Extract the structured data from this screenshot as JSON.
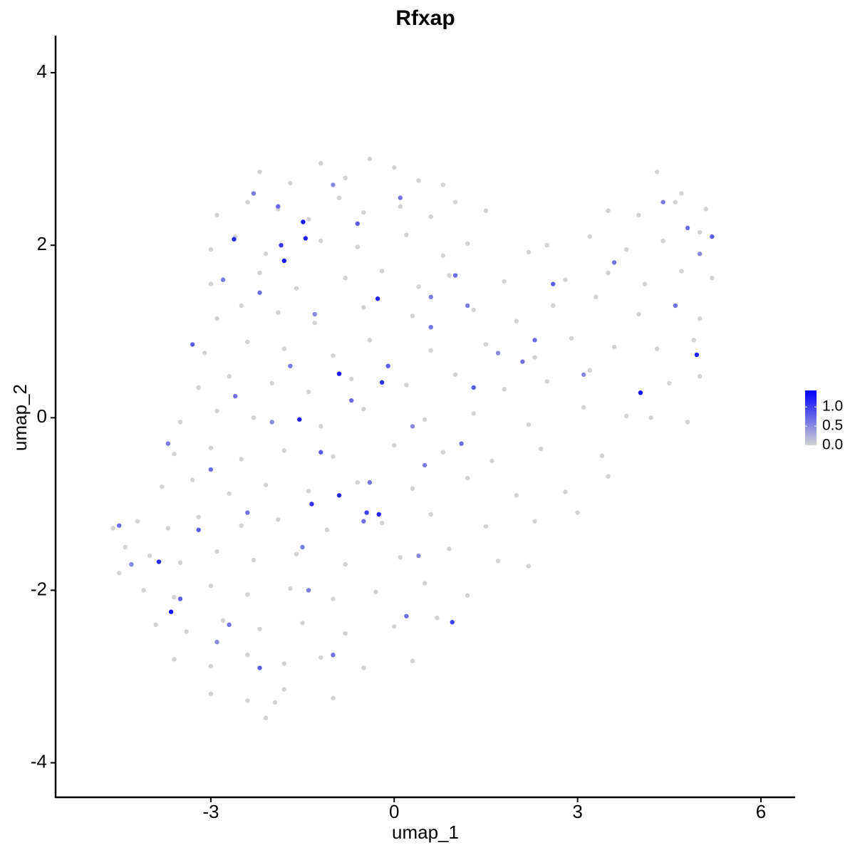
{
  "chart_data": {
    "type": "scatter",
    "title": "Rfxap",
    "x_label": "umap_1",
    "y_label": "umap_2",
    "xlim": [
      -5.54,
      6.56
    ],
    "ylim": [
      -4.4,
      4.43
    ],
    "xticks": [
      -3,
      0,
      3,
      6
    ],
    "yticks": [
      -4,
      -2,
      0,
      2,
      4
    ],
    "color_low": "#d3d3d3",
    "color_high": "#0000ff",
    "clim": [
      0,
      1.43
    ],
    "cticks": [
      {
        "value": 0,
        "label": "0.0"
      },
      {
        "value": 0.5,
        "label": "0.5"
      },
      {
        "value": 1,
        "label": "1.0"
      }
    ],
    "x": [
      -2.2,
      -1.7,
      -1.2,
      -0.8,
      -0.4,
      0.0,
      0.4,
      0.8,
      -2.9,
      -2.4,
      -1.9,
      -1.4,
      -0.9,
      -0.5,
      0.1,
      0.6,
      1.0,
      1.5,
      -3.0,
      -2.6,
      -2.1,
      -1.2,
      -0.6,
      0.2,
      0.8,
      1.2,
      -3.0,
      -2.2,
      -1.6,
      -0.8,
      -0.2,
      0.4,
      0.9,
      1.8,
      2.2,
      -2.9,
      -2.5,
      -1.9,
      -1.3,
      -0.5,
      0.3,
      1.3,
      2.0,
      2.6,
      3.3,
      -3.1,
      -2.4,
      -1.8,
      -1.0,
      -0.4,
      0.6,
      1.5,
      2.3,
      2.9,
      3.6,
      -3.2,
      -2.7,
      -2.0,
      -1.4,
      -0.7,
      0.2,
      1.0,
      1.8,
      2.5,
      3.2,
      -3.5,
      -2.9,
      -2.3,
      -1.2,
      -0.5,
      0.5,
      1.3,
      2.2,
      3.1,
      3.8,
      -3.6,
      -3.0,
      -2.5,
      -1.8,
      -1.0,
      0.0,
      0.8,
      1.6,
      2.4,
      3.4,
      -3.8,
      -3.3,
      -2.7,
      -2.1,
      -1.4,
      -0.6,
      0.3,
      1.2,
      2.0,
      2.8,
      3.5,
      -4.2,
      -3.7,
      -3.2,
      -2.5,
      -1.9,
      -1.1,
      -0.2,
      0.6,
      1.5,
      2.3,
      3.0,
      -4.0,
      -3.5,
      -2.9,
      -2.3,
      -1.6,
      -0.8,
      0.1,
      0.9,
      1.7,
      2.2,
      -4.1,
      -3.6,
      -3.0,
      -2.4,
      -1.7,
      -1.0,
      -0.3,
      0.5,
      1.2,
      -3.9,
      -3.4,
      -2.8,
      -2.2,
      -1.5,
      -0.8,
      0.0,
      0.7,
      -3.6,
      -3.0,
      -2.4,
      -1.8,
      -1.2,
      -0.5,
      0.3,
      -3.0,
      -2.4,
      -1.8,
      -1.0,
      -2.1,
      -1.95,
      4.3,
      4.7,
      3.5,
      4.0,
      4.6,
      5.1,
      2.5,
      3.2,
      3.8,
      4.4,
      5.0,
      2.8,
      3.5,
      4.1,
      4.7,
      5.2,
      4.0,
      4.6,
      5.0,
      4.3,
      4.9,
      4.5,
      5.0,
      4.2,
      4.8,
      -4.6,
      -4.4,
      -4.5,
      -2.3,
      -1.9,
      -1.0,
      -0.6,
      0.1,
      0.6,
      1.0,
      1.7,
      2.6,
      3.6,
      4.4,
      4.8,
      5.0,
      5.2,
      4.6,
      -2.8,
      -2.2,
      -1.3,
      -0.1,
      0.6,
      1.2,
      2.3,
      3.1,
      -3.3,
      -2.6,
      -1.7,
      -0.7,
      0.3,
      1.3,
      2.1,
      -3.7,
      -3.0,
      -2.0,
      -1.2,
      -0.4,
      0.5,
      1.1,
      -4.3,
      -3.2,
      -2.4,
      -1.5,
      -0.5,
      0.4,
      -3.5,
      -2.7,
      -1.4,
      0.2,
      -2.9,
      -2.2,
      -1.0,
      -4.5,
      -1.49,
      -1.45,
      -1.8,
      -2.62,
      -0.27,
      -0.9,
      -0.2,
      -1.55,
      -0.9,
      -1.35,
      -0.25,
      -0.45,
      -3.85,
      -3.65,
      4.95,
      4.03,
      0.95,
      -1.85
    ],
    "y": [
      2.85,
      2.72,
      2.95,
      2.78,
      3.0,
      2.9,
      2.75,
      2.7,
      2.35,
      2.5,
      2.42,
      2.3,
      2.55,
      2.38,
      2.45,
      2.33,
      2.5,
      2.4,
      1.95,
      2.1,
      1.9,
      2.05,
      1.98,
      2.12,
      1.88,
      2.02,
      1.55,
      1.68,
      1.5,
      1.62,
      1.7,
      1.52,
      1.65,
      1.58,
      1.92,
      1.15,
      1.3,
      1.22,
      1.1,
      1.28,
      1.18,
      1.25,
      1.12,
      1.3,
      1.4,
      0.75,
      0.88,
      0.8,
      0.72,
      0.9,
      0.78,
      0.85,
      0.7,
      0.92,
      0.82,
      0.35,
      0.48,
      0.4,
      0.3,
      0.45,
      0.38,
      0.5,
      0.33,
      0.42,
      0.55,
      -0.05,
      0.08,
      0.0,
      -0.1,
      0.1,
      -0.02,
      0.05,
      -0.08,
      0.12,
      0.02,
      -0.42,
      -0.35,
      -0.48,
      -0.38,
      -0.45,
      -0.32,
      -0.4,
      -0.5,
      -0.36,
      -0.44,
      -0.8,
      -0.72,
      -0.88,
      -0.78,
      -0.85,
      -0.75,
      -0.82,
      -0.7,
      -0.9,
      -0.86,
      -0.68,
      -1.2,
      -1.28,
      -1.15,
      -1.25,
      -1.18,
      -1.3,
      -1.22,
      -1.12,
      -1.26,
      -1.2,
      -1.1,
      -1.6,
      -1.68,
      -1.55,
      -1.65,
      -1.58,
      -1.7,
      -1.62,
      -1.52,
      -1.66,
      -1.72,
      -2.0,
      -2.08,
      -1.95,
      -2.05,
      -1.98,
      -2.1,
      -2.02,
      -1.92,
      -2.06,
      -2.4,
      -2.48,
      -2.35,
      -2.45,
      -2.38,
      -2.5,
      -2.42,
      -2.32,
      -2.8,
      -2.88,
      -2.75,
      -2.85,
      -2.78,
      -2.9,
      -2.82,
      -3.2,
      -3.28,
      -3.15,
      -3.25,
      -3.48,
      -3.3,
      2.85,
      2.6,
      2.4,
      2.35,
      2.5,
      2.42,
      2.0,
      2.1,
      1.95,
      2.05,
      2.15,
      1.6,
      1.68,
      1.55,
      1.7,
      1.62,
      1.2,
      1.3,
      1.15,
      0.8,
      0.9,
      0.4,
      0.48,
      0.0,
      -0.05,
      -1.28,
      -1.5,
      -1.8,
      2.6,
      2.45,
      2.7,
      2.25,
      2.55,
      1.4,
      1.65,
      0.75,
      1.55,
      1.8,
      2.5,
      2.2,
      1.9,
      2.1,
      1.3,
      1.6,
      1.45,
      1.2,
      0.6,
      1.05,
      1.3,
      0.9,
      0.5,
      0.85,
      0.25,
      0.6,
      0.2,
      -0.1,
      0.35,
      0.65,
      -0.3,
      -0.6,
      -0.05,
      -0.4,
      -0.75,
      -0.55,
      -0.3,
      -1.7,
      -1.3,
      -1.1,
      -1.5,
      -1.2,
      -1.6,
      -2.1,
      -2.4,
      -2.0,
      -2.3,
      -2.6,
      -2.9,
      -2.75,
      -1.25,
      2.27,
      2.08,
      1.82,
      2.07,
      1.38,
      0.51,
      0.41,
      -0.02,
      -0.9,
      -1.0,
      -1.12,
      -1.1,
      -1.67,
      -2.25,
      0.73,
      0.29,
      -2.37,
      2.0
    ],
    "values": [
      0,
      0,
      0,
      0,
      0,
      0,
      0,
      0,
      0,
      0,
      0,
      0,
      0,
      0,
      0,
      0,
      0,
      0,
      0,
      0,
      0,
      0,
      0,
      0,
      0,
      0,
      0,
      0,
      0,
      0,
      0,
      0,
      0,
      0,
      0,
      0,
      0,
      0,
      0,
      0,
      0,
      0,
      0,
      0,
      0,
      0,
      0,
      0,
      0,
      0,
      0,
      0,
      0,
      0,
      0,
      0,
      0,
      0,
      0,
      0,
      0,
      0,
      0,
      0,
      0,
      0,
      0,
      0,
      0,
      0,
      0,
      0,
      0,
      0,
      0,
      0,
      0,
      0,
      0,
      0,
      0,
      0,
      0,
      0,
      0,
      0,
      0,
      0,
      0,
      0,
      0,
      0,
      0,
      0,
      0,
      0,
      0,
      0,
      0,
      0,
      0,
      0,
      0,
      0,
      0,
      0,
      0,
      0,
      0,
      0,
      0,
      0,
      0,
      0,
      0,
      0,
      0,
      0,
      0,
      0,
      0,
      0,
      0,
      0,
      0,
      0,
      0,
      0,
      0,
      0,
      0,
      0,
      0,
      0,
      0,
      0,
      0,
      0,
      0,
      0,
      0,
      0,
      0,
      0,
      0,
      0,
      0,
      0,
      0,
      0,
      0,
      0,
      0,
      0,
      0,
      0,
      0,
      0,
      0,
      0,
      0,
      0,
      0,
      0,
      0,
      0,
      0,
      0,
      0,
      0,
      0,
      0,
      0,
      0,
      0,
      0.6,
      0.7,
      0.5,
      0.8,
      0.65,
      0.6,
      0.7,
      0.5,
      0.8,
      0.65,
      0.6,
      0.7,
      0.5,
      0.8,
      0.65,
      0.6,
      0.7,
      0.5,
      0.8,
      0.65,
      0.6,
      0.7,
      0.5,
      0.8,
      0.65,
      0.6,
      0.7,
      0.5,
      0.8,
      0.65,
      0.6,
      0.7,
      0.5,
      0.8,
      0.65,
      0.6,
      0.7,
      0.5,
      0.8,
      0.65,
      0.6,
      0.7,
      0.5,
      0.8,
      0.65,
      0.6,
      0.7,
      0.5,
      0.8,
      0.65,
      0.7,
      1.3,
      1.2,
      1.25,
      1.15,
      1.2,
      1.25,
      1.1,
      1.2,
      1.15,
      1.1,
      1.2,
      1.0,
      1.15,
      1.3,
      1.2,
      1.3,
      1.0,
      1.05
    ]
  }
}
